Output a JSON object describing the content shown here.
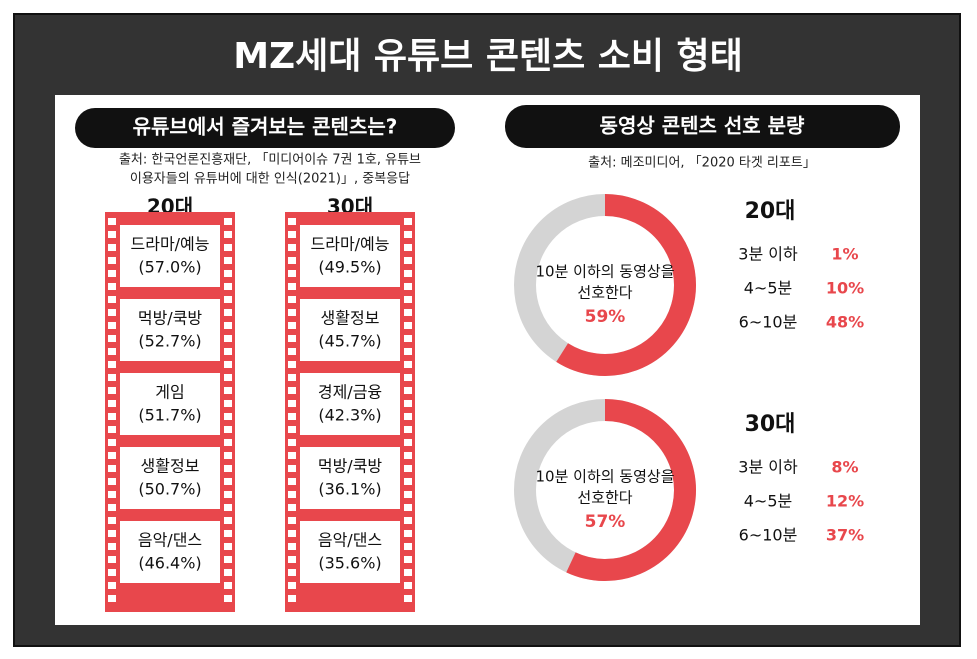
{
  "title": "MZ세대 유튜브 콘텐츠 소비 형태",
  "left": {
    "heading": "유튜브에서 즐겨보는 콘텐츠는?",
    "source": [
      "출처: 한국언론진흥재단, 「미디어이슈 7권 1호, 유튜브",
      "이용자들의 유튜버에 대한 인식(2021)」, 중복응답"
    ],
    "columns": [
      {
        "label": "20대",
        "items": [
          {
            "name": "드라마/예능",
            "pct": "(57.0%)"
          },
          {
            "name": "먹방/쿡방",
            "pct": "(52.7%)"
          },
          {
            "name": "게임",
            "pct": "(51.7%)"
          },
          {
            "name": "생활정보",
            "pct": "(50.7%)"
          },
          {
            "name": "음악/댄스",
            "pct": "(46.4%)"
          }
        ]
      },
      {
        "label": "30대",
        "items": [
          {
            "name": "드라마/예능",
            "pct": "(49.5%)"
          },
          {
            "name": "생활정보",
            "pct": "(45.7%)"
          },
          {
            "name": "경제/금융",
            "pct": "(42.3%)"
          },
          {
            "name": "먹방/쿡방",
            "pct": "(36.1%)"
          },
          {
            "name": "음악/댄스",
            "pct": "(35.6%)"
          }
        ]
      }
    ]
  },
  "right": {
    "heading": "동영상 콘텐츠 선호 분량",
    "source": "출처: 메조미디어, 「2020 타겟 리포트」",
    "groups": [
      {
        "label": "20대",
        "donut_text": [
          "10분 이하의 동영상을",
          "선호한다"
        ],
        "donut": {
          "value": 59,
          "label": "59%"
        },
        "rows": [
          {
            "name": "3분 이하",
            "value": "1%"
          },
          {
            "name": "4~5분",
            "value": "10%"
          },
          {
            "name": "6~10분",
            "value": "48%"
          }
        ]
      },
      {
        "label": "30대",
        "donut_text": [
          "10분 이하의 동영상을",
          "선호한다"
        ],
        "donut": {
          "value": 57,
          "label": "57%"
        },
        "rows": [
          {
            "name": "3분 이하",
            "value": "8%"
          },
          {
            "name": "4~5분",
            "value": "12%"
          },
          {
            "name": "6~10분",
            "value": "37%"
          }
        ]
      }
    ]
  }
}
